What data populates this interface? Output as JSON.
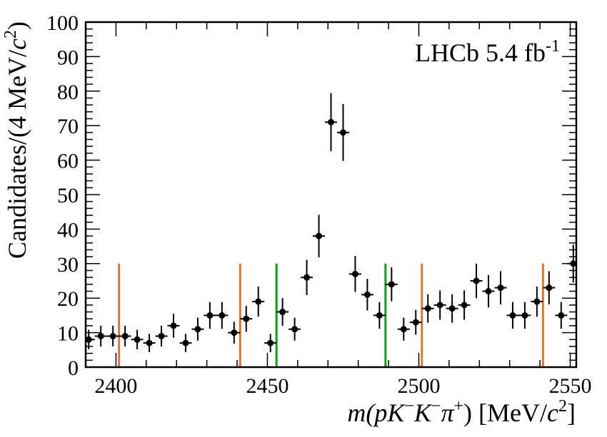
{
  "chart_data": {
    "type": "scatter",
    "title": "",
    "annotation": {
      "experiment": "LHCb",
      "lumi_value": "5.4 fb",
      "lumi_exp": "-1"
    },
    "xlabel": {
      "m": "m(",
      "p": "p",
      "K1": "K",
      "K2": "K",
      "pi": "π",
      "close": ") [MeV/",
      "c": "c",
      "exp2": "2",
      "end": "]",
      "minus": "−",
      "plus": "+"
    },
    "ylabel": {
      "main": "Candidates/(4 MeV/",
      "c": "c",
      "exp2": "2",
      "end": ")"
    },
    "xlim": [
      2390,
      2552
    ],
    "ylim": [
      0,
      100
    ],
    "bin_width": 4,
    "x_ticks": [
      2400,
      2450,
      2500,
      2550
    ],
    "y_ticks": [
      0,
      10,
      20,
      30,
      40,
      50,
      60,
      70,
      80,
      90,
      100
    ],
    "grid": false,
    "marker_color": "#000000",
    "series": [
      {
        "x": [
          2391,
          2395,
          2399,
          2403,
          2407,
          2411,
          2415,
          2419,
          2423,
          2427,
          2431,
          2435,
          2439,
          2443,
          2447,
          2451,
          2455,
          2459,
          2463,
          2467,
          2471,
          2475,
          2479,
          2483,
          2487,
          2491,
          2495,
          2499,
          2503,
          2507,
          2511,
          2515,
          2519,
          2523,
          2527,
          2531,
          2535,
          2539,
          2543,
          2547,
          2551
        ],
        "y": [
          8,
          9,
          9,
          9,
          8,
          7,
          9,
          12,
          7,
          11,
          15,
          15,
          10,
          14,
          19,
          7,
          16,
          11,
          26,
          38,
          71,
          68,
          27,
          21,
          15,
          24,
          11,
          13,
          17,
          18,
          17,
          18,
          25,
          22,
          23,
          15,
          15,
          19,
          23,
          15,
          30
        ]
      }
    ],
    "vertical_lines": [
      {
        "x": 2401,
        "y_top": 30,
        "color": "#f07020"
      },
      {
        "x": 2441,
        "y_top": 30,
        "color": "#f07020"
      },
      {
        "x": 2453,
        "y_top": 30,
        "color": "#12a012"
      },
      {
        "x": 2489,
        "y_top": 30,
        "color": "#12a012"
      },
      {
        "x": 2501,
        "y_top": 30,
        "color": "#f07020"
      },
      {
        "x": 2541,
        "y_top": 30,
        "color": "#f07020"
      }
    ]
  }
}
